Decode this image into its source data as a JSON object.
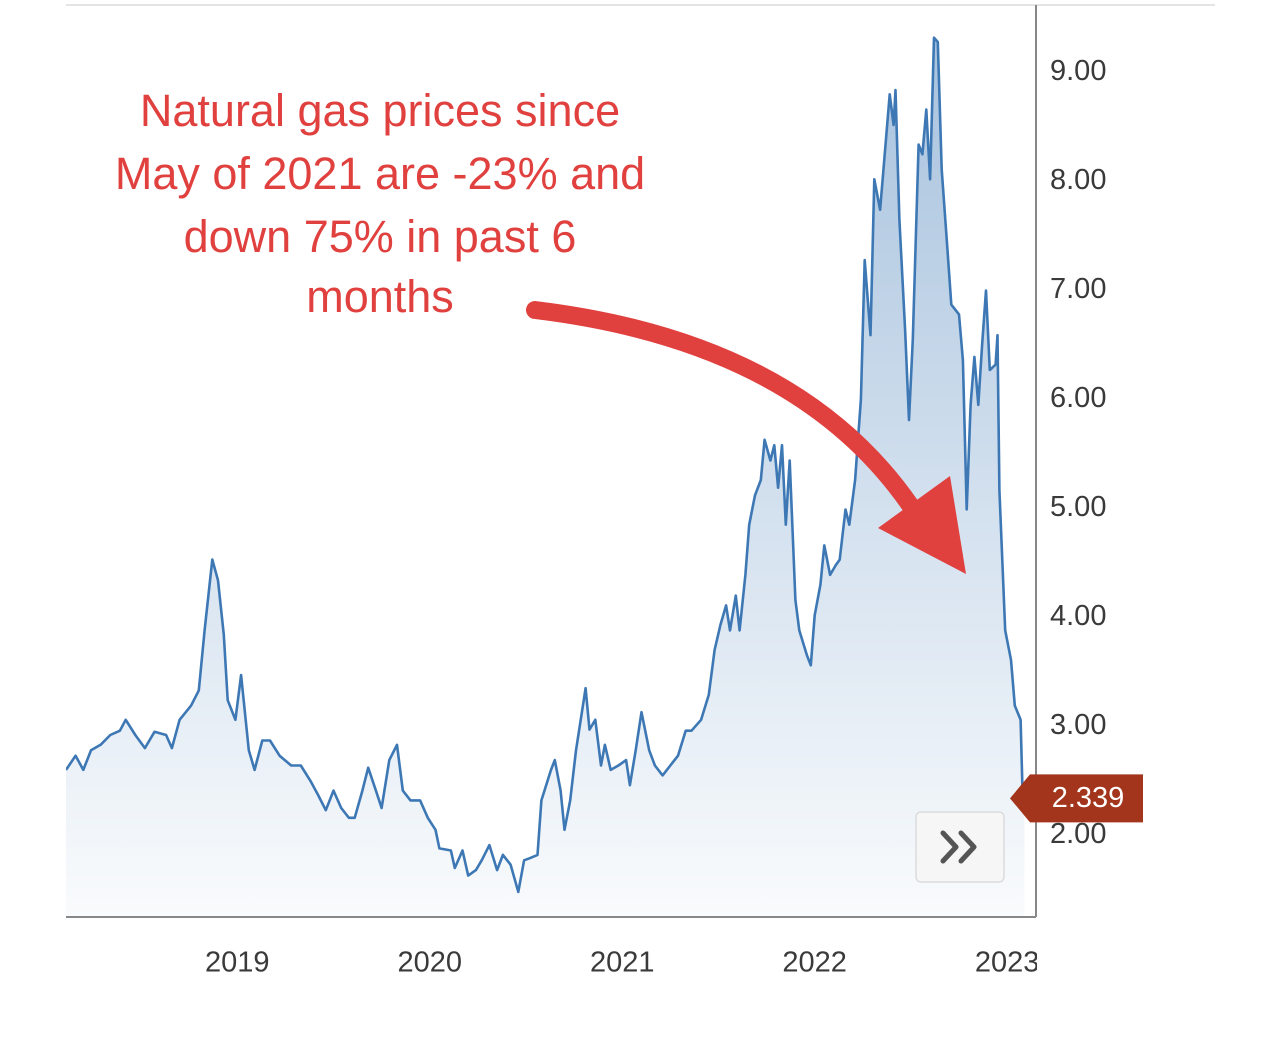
{
  "chart_data": {
    "type": "line",
    "annotation": [
      "Natural gas prices since",
      "May of 2021 are -23% and",
      "down 75% in past 6",
      "months"
    ],
    "xlim": [
      2018.11,
      2023.15
    ],
    "xticks": [
      2019,
      2020,
      2021,
      2022,
      2023
    ],
    "ylim": [
      1.25,
      9.62
    ],
    "yticks": [
      {
        "value": 2,
        "label": "2.00"
      },
      {
        "value": 3,
        "label": "3.00"
      },
      {
        "value": 4,
        "label": "4.00"
      },
      {
        "value": 5,
        "label": "5.00"
      },
      {
        "value": 6,
        "label": "6.00"
      },
      {
        "value": 7,
        "label": "7.00"
      },
      {
        "value": 8,
        "label": "8.00"
      },
      {
        "value": 9,
        "label": "9.00"
      }
    ],
    "grid": true,
    "area": true,
    "series": [
      {
        "color": "#3d78b5",
        "x": [
          2018.11,
          2018.16,
          2018.2,
          2018.24,
          2018.29,
          2018.34,
          2018.39,
          2018.42,
          2018.47,
          2018.52,
          2018.57,
          2018.63,
          2018.66,
          2018.7,
          2018.76,
          2018.8,
          2018.83,
          2018.87,
          2018.9,
          2018.93,
          2018.95,
          2018.99,
          2019.02,
          2019.06,
          2019.09,
          2019.13,
          2019.17,
          2019.22,
          2019.28,
          2019.33,
          2019.38,
          2019.42,
          2019.46,
          2019.5,
          2019.54,
          2019.58,
          2019.61,
          2019.65,
          2019.68,
          2019.72,
          2019.75,
          2019.79,
          2019.83,
          2019.86,
          2019.9,
          2019.95,
          2019.99,
          2020.03,
          2020.05,
          2020.11,
          2020.13,
          2020.17,
          2020.2,
          2020.24,
          2020.27,
          2020.31,
          2020.35,
          2020.38,
          2020.42,
          2020.46,
          2020.49,
          2020.52,
          2020.56,
          2020.58,
          2020.63,
          2020.65,
          2020.68,
          2020.7,
          2020.73,
          2020.76,
          2020.78,
          2020.81,
          2020.83,
          2020.86,
          2020.89,
          2020.91,
          2020.94,
          2020.98,
          2021.02,
          2021.04,
          2021.07,
          2021.1,
          2021.14,
          2021.17,
          2021.21,
          2021.25,
          2021.29,
          2021.33,
          2021.36,
          2021.41,
          2021.45,
          2021.48,
          2021.51,
          2021.54,
          2021.56,
          2021.59,
          2021.61,
          2021.64,
          2021.66,
          2021.69,
          2021.72,
          2021.74,
          2021.77,
          2021.79,
          2021.81,
          2021.83,
          2021.85,
          2021.87,
          2021.9,
          2021.92,
          2021.96,
          2021.98,
          2022.0,
          2022.03,
          2022.05,
          2022.08,
          2022.11,
          2022.13,
          2022.16,
          2022.18,
          2022.21,
          2022.24,
          2022.26,
          2022.29,
          2022.31,
          2022.34,
          2022.37,
          2022.39,
          2022.41,
          2022.42,
          2022.44,
          2022.47,
          2022.49,
          2022.51,
          2022.54,
          2022.56,
          2022.58,
          2022.6,
          2022.62,
          2022.64,
          2022.66,
          2022.69,
          2022.71,
          2022.75,
          2022.77,
          2022.79,
          2022.81,
          2022.83,
          2022.85,
          2022.87,
          2022.89,
          2022.91,
          2022.94,
          2022.95,
          2022.96,
          2022.99,
          2023.02,
          2023.04,
          2023.07,
          2023.08,
          2023.09
        ],
        "values": [
          2.6,
          2.73,
          2.6,
          2.78,
          2.83,
          2.92,
          2.96,
          3.06,
          2.92,
          2.8,
          2.95,
          2.92,
          2.8,
          3.06,
          3.19,
          3.33,
          3.88,
          4.53,
          4.34,
          3.84,
          3.24,
          3.06,
          3.47,
          2.78,
          2.6,
          2.87,
          2.87,
          2.73,
          2.64,
          2.64,
          2.5,
          2.37,
          2.23,
          2.41,
          2.25,
          2.16,
          2.16,
          2.41,
          2.62,
          2.41,
          2.25,
          2.69,
          2.83,
          2.41,
          2.32,
          2.32,
          2.16,
          2.05,
          1.88,
          1.86,
          1.7,
          1.86,
          1.63,
          1.68,
          1.77,
          1.91,
          1.68,
          1.82,
          1.73,
          1.48,
          1.77,
          1.79,
          1.82,
          2.32,
          2.6,
          2.69,
          2.41,
          2.05,
          2.32,
          2.78,
          3.01,
          3.35,
          2.97,
          3.06,
          2.64,
          2.83,
          2.6,
          2.64,
          2.69,
          2.46,
          2.78,
          3.13,
          2.78,
          2.64,
          2.55,
          2.64,
          2.73,
          2.96,
          2.96,
          3.06,
          3.29,
          3.7,
          3.93,
          4.11,
          3.88,
          4.2,
          3.88,
          4.39,
          4.85,
          5.12,
          5.26,
          5.63,
          5.44,
          5.58,
          5.19,
          5.58,
          4.85,
          5.44,
          4.16,
          3.88,
          3.65,
          3.56,
          4.02,
          4.3,
          4.66,
          4.39,
          4.48,
          4.53,
          4.99,
          4.85,
          5.26,
          6.0,
          7.28,
          6.59,
          8.02,
          7.74,
          8.38,
          8.8,
          8.52,
          8.84,
          7.65,
          6.64,
          5.81,
          6.55,
          8.34,
          8.25,
          8.66,
          8.02,
          9.32,
          9.28,
          8.11,
          7.37,
          6.87,
          6.78,
          6.36,
          4.99,
          5.95,
          6.39,
          5.95,
          6.5,
          7.0,
          6.27,
          6.32,
          6.59,
          5.17,
          3.88,
          3.61,
          3.19,
          3.06,
          2.41,
          2.339
        ]
      }
    ]
  }
}
